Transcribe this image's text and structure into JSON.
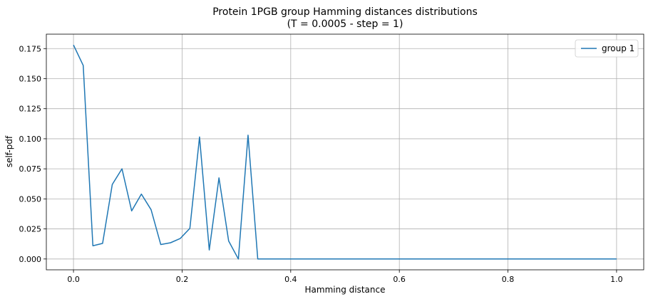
{
  "chart_data": {
    "type": "line",
    "title": "Protein 1PGB group Hamming distances distributions",
    "subtitle": "(T = 0.0005 - step = 1)",
    "xlabel": "Hamming distance",
    "ylabel": "self-pdf",
    "xlim": [
      -0.05,
      1.05
    ],
    "ylim": [
      -0.009,
      0.187
    ],
    "xticks": [
      0.0,
      0.2,
      0.4,
      0.6,
      0.8,
      1.0
    ],
    "xtick_labels": [
      "0.0",
      "0.2",
      "0.4",
      "0.6",
      "0.8",
      "1.0"
    ],
    "yticks": [
      0.0,
      0.025,
      0.05,
      0.075,
      0.1,
      0.125,
      0.15,
      0.175
    ],
    "ytick_labels": [
      "0.000",
      "0.025",
      "0.050",
      "0.075",
      "0.100",
      "0.125",
      "0.150",
      "0.175"
    ],
    "grid": true,
    "legend_position": "top-right",
    "series": [
      {
        "name": "group 1",
        "color": "#1f77b4",
        "x": [
          0.0,
          0.0179,
          0.0357,
          0.0536,
          0.0714,
          0.0893,
          0.1071,
          0.125,
          0.1429,
          0.1607,
          0.1786,
          0.1964,
          0.2143,
          0.2321,
          0.25,
          0.2679,
          0.2857,
          0.3036,
          0.3214,
          0.3393,
          0.3571,
          0.4,
          0.5,
          0.6,
          0.7,
          0.8,
          0.9,
          1.0
        ],
        "y": [
          0.178,
          0.161,
          0.011,
          0.013,
          0.062,
          0.075,
          0.04,
          0.054,
          0.041,
          0.012,
          0.0135,
          0.017,
          0.0255,
          0.1015,
          0.0075,
          0.0675,
          0.015,
          0.0,
          0.103,
          0.0,
          0.0,
          0.0,
          0.0,
          0.0,
          0.0,
          0.0,
          0.0,
          0.0
        ]
      }
    ]
  }
}
